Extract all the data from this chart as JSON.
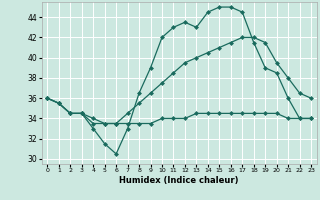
{
  "xlabel": "Humidex (Indice chaleur)",
  "bg_color": "#cce8e0",
  "line_color": "#1a6b5e",
  "grid_color": "#ffffff",
  "xlim": [
    -0.5,
    23.5
  ],
  "ylim": [
    29.5,
    45.5
  ],
  "yticks": [
    30,
    32,
    34,
    36,
    38,
    40,
    42,
    44
  ],
  "xticks": [
    0,
    1,
    2,
    3,
    4,
    5,
    6,
    7,
    8,
    9,
    10,
    11,
    12,
    13,
    14,
    15,
    16,
    17,
    18,
    19,
    20,
    21,
    22,
    23
  ],
  "series": [
    {
      "x": [
        0,
        1,
        2,
        3,
        4,
        5,
        6,
        7,
        8,
        9,
        10,
        11,
        12,
        13,
        14,
        15,
        16,
        17,
        18,
        19,
        20,
        21,
        22,
        23
      ],
      "y": [
        36,
        35.5,
        34.5,
        34.5,
        33,
        31.5,
        30.5,
        33,
        36.5,
        39,
        42,
        43,
        43.5,
        43,
        44.5,
        45,
        45,
        44.5,
        41.5,
        39,
        38.5,
        36,
        34,
        34
      ]
    },
    {
      "x": [
        0,
        1,
        2,
        3,
        4,
        5,
        6,
        7,
        8,
        9,
        10,
        11,
        12,
        13,
        14,
        15,
        16,
        17,
        18,
        19,
        20,
        21,
        22,
        23
      ],
      "y": [
        36,
        35.5,
        34.5,
        34.5,
        33.5,
        33.5,
        33.5,
        33.5,
        33.5,
        33.5,
        34,
        34,
        34,
        34.5,
        34.5,
        34.5,
        34.5,
        34.5,
        34.5,
        34.5,
        34.5,
        34,
        34,
        34
      ]
    },
    {
      "x": [
        0,
        1,
        2,
        3,
        4,
        5,
        6,
        7,
        8,
        9,
        10,
        11,
        12,
        13,
        14,
        15,
        16,
        17,
        18,
        19,
        20,
        21,
        22,
        23
      ],
      "y": [
        36,
        35.5,
        34.5,
        34.5,
        34,
        33.5,
        33.5,
        34.5,
        35.5,
        36.5,
        37.5,
        38.5,
        39.5,
        40,
        40.5,
        41,
        41.5,
        42,
        42,
        41.5,
        39.5,
        38,
        36.5,
        36
      ]
    }
  ]
}
